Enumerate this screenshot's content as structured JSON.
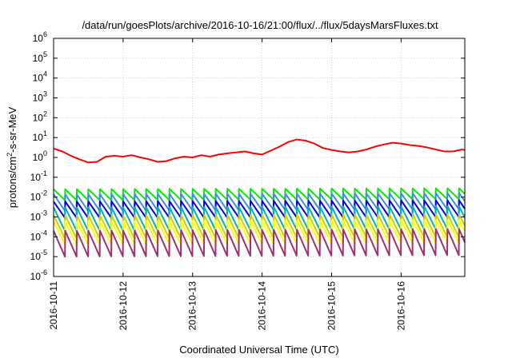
{
  "chart_data": {
    "type": "line",
    "title": "/data/run/goesPlots/archive/2016-10-16/21:00/flux/../flux/5daysMarsFluxes.txt",
    "xlabel": "Coordinated Universal Time (UTC)",
    "ylabel": {
      "base": "protons/cm",
      "exp": "2",
      "rest": "-s-sr-MeV"
    },
    "y_scale": "log",
    "ylim": [
      1e-06,
      1000000.0
    ],
    "y_ticks": [
      {
        "base": "10",
        "exp": "-6"
      },
      {
        "base": "10",
        "exp": "-5"
      },
      {
        "base": "10",
        "exp": "-4"
      },
      {
        "base": "10",
        "exp": "-3"
      },
      {
        "base": "10",
        "exp": "-2"
      },
      {
        "base": "10",
        "exp": "-1"
      },
      {
        "base": "10",
        "exp": "0"
      },
      {
        "base": "10",
        "exp": "1"
      },
      {
        "base": "10",
        "exp": "2"
      },
      {
        "base": "10",
        "exp": "3"
      },
      {
        "base": "10",
        "exp": "4"
      },
      {
        "base": "10",
        "exp": "5"
      },
      {
        "base": "10",
        "exp": "6"
      }
    ],
    "x_ticks": [
      "2016-10-11",
      "2016-10-12",
      "2016-10-13",
      "2016-10-14",
      "2016-10-15",
      "2016-10-16"
    ],
    "xlim": [
      "2016-10-11T00:00",
      "2016-10-16T22:00"
    ],
    "grid": true,
    "legend": "none",
    "sawtooth_period_hours": 4,
    "series": [
      {
        "color": "#ff0000",
        "style": "smooth",
        "x": [
          "2016-10-11T00:00",
          "2016-10-11T03:00",
          "2016-10-11T06:00",
          "2016-10-11T09:00",
          "2016-10-11T12:00",
          "2016-10-11T15:00",
          "2016-10-11T18:00",
          "2016-10-11T21:00",
          "2016-10-12T00:00",
          "2016-10-12T03:00",
          "2016-10-12T06:00",
          "2016-10-12T09:00",
          "2016-10-12T12:00",
          "2016-10-12T15:00",
          "2016-10-12T18:00",
          "2016-10-12T21:00",
          "2016-10-13T00:00",
          "2016-10-13T03:00",
          "2016-10-13T06:00",
          "2016-10-13T09:00",
          "2016-10-13T12:00",
          "2016-10-13T15:00",
          "2016-10-13T18:00",
          "2016-10-13T21:00",
          "2016-10-14T00:00",
          "2016-10-14T03:00",
          "2016-10-14T06:00",
          "2016-10-14T09:00",
          "2016-10-14T12:00",
          "2016-10-14T15:00",
          "2016-10-14T18:00",
          "2016-10-14T21:00",
          "2016-10-15T00:00",
          "2016-10-15T03:00",
          "2016-10-15T06:00",
          "2016-10-15T09:00",
          "2016-10-15T12:00",
          "2016-10-15T15:00",
          "2016-10-15T18:00",
          "2016-10-15T21:00",
          "2016-10-16T00:00",
          "2016-10-16T03:00",
          "2016-10-16T06:00",
          "2016-10-16T09:00",
          "2016-10-16T12:00",
          "2016-10-16T15:00",
          "2016-10-16T18:00",
          "2016-10-16T21:00",
          "2016-10-16T22:00"
        ],
        "y": [
          2.8,
          2.0,
          1.2,
          0.8,
          0.55,
          0.6,
          1.1,
          1.2,
          1.1,
          1.3,
          1.0,
          0.8,
          0.6,
          0.65,
          0.9,
          1.1,
          1.0,
          1.3,
          1.1,
          1.4,
          1.6,
          1.8,
          2.0,
          1.6,
          1.4,
          2.2,
          3.5,
          6.0,
          8.0,
          7.0,
          5.0,
          3.0,
          2.4,
          2.0,
          1.8,
          2.0,
          2.5,
          3.5,
          4.5,
          5.5,
          5.0,
          4.2,
          3.8,
          3.2,
          2.5,
          2.0,
          2.0,
          2.5,
          2.4
        ]
      },
      {
        "color": "#00ee00",
        "style": "sawtooth",
        "x": [
          "2016-10-11T00:00",
          "2016-10-16T22:00"
        ],
        "peak": [
          0.025,
          0.028
        ],
        "base": [
          0.007,
          0.008
        ]
      },
      {
        "color": "#3a8ee6",
        "style": "sawtooth",
        "x": [
          "2016-10-11T00:00",
          "2016-10-16T22:00"
        ],
        "peak": [
          0.014,
          0.016
        ],
        "base": [
          0.002,
          0.0025
        ]
      },
      {
        "color": "#0000e6",
        "style": "sawtooth",
        "x": [
          "2016-10-11T00:00",
          "2016-10-16T22:00"
        ],
        "peak": [
          0.006,
          0.007
        ],
        "base": [
          0.0009,
          0.001
        ]
      },
      {
        "color": "#00b3b3",
        "style": "sawtooth",
        "x": [
          "2016-10-11T00:00",
          "2016-10-16T22:00"
        ],
        "peak": [
          0.003,
          0.0035
        ],
        "base": [
          0.0002,
          0.00025
        ]
      },
      {
        "color": "#c9d400",
        "style": "sawtooth",
        "x": [
          "2016-10-11T00:00",
          "2016-10-16T22:00"
        ],
        "peak": [
          0.0012,
          0.0014
        ],
        "base": [
          8e-05,
          0.0001
        ]
      },
      {
        "color": "#ffff00",
        "style": "sawtooth",
        "x": [
          "2016-10-11T00:00",
          "2016-10-16T22:00"
        ],
        "peak": [
          0.0006,
          0.0007
        ],
        "base": [
          4e-05,
          5e-05
        ]
      },
      {
        "color": "#a3306e",
        "style": "sawtooth",
        "x": [
          "2016-10-11T00:00",
          "2016-10-16T22:00"
        ],
        "peak": [
          0.0002,
          0.00025
        ],
        "base": [
          1e-05,
          1.2e-05
        ]
      }
    ]
  }
}
